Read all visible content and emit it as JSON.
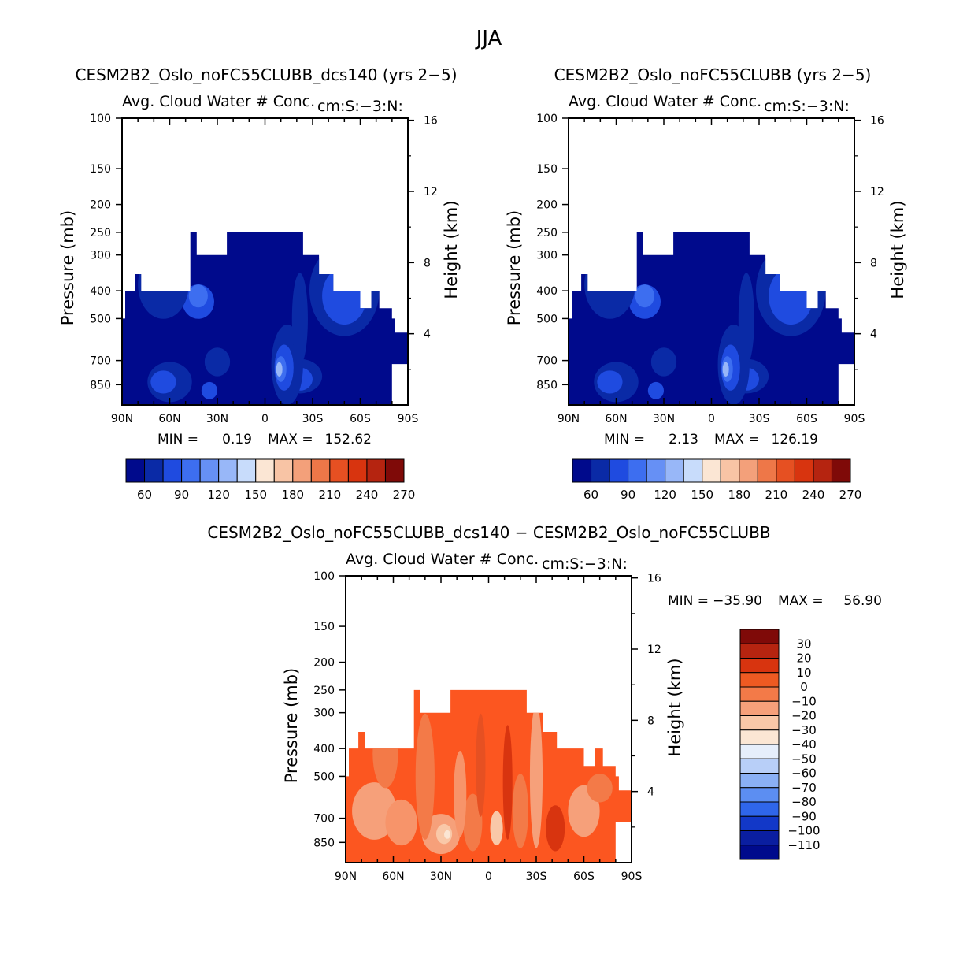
{
  "figure": {
    "title": "JJA"
  },
  "chart_data": [
    {
      "type": "heatmap",
      "title": "CESM2B2_Oslo_noFC55CLUBB_dcs140 (yrs 2−5)",
      "subtitle": "Avg. Cloud Water # Conc.",
      "units": "cm:S:−3:N:",
      "ylabel": "Pressure (mb)",
      "ylabel_right": "Height (km)",
      "x_ticks": [
        "90N",
        "60N",
        "30N",
        "0",
        "30S",
        "60S",
        "90S"
      ],
      "y_ticks": [
        "100",
        "150",
        "200",
        "250",
        "300",
        "400",
        "500",
        "700",
        "850"
      ],
      "y_ticks_right": [
        "16",
        "12",
        "8",
        "4"
      ],
      "min_label": "MIN =",
      "min_value": "0.19",
      "max_label": "MAX =",
      "max_value": "152.62",
      "colorbar_labels": [
        "60",
        "90",
        "120",
        "150",
        "180",
        "210",
        "240",
        "270"
      ],
      "colorbar_colors": [
        "#000a8c",
        "#0a2aa6",
        "#1f4be0",
        "#3d6ef0",
        "#6690f5",
        "#98b7f8",
        "#c8dcfb",
        "#fbe6d4",
        "#f8c4a5",
        "#f3a07a",
        "#ee7748",
        "#e65022",
        "#d8340f",
        "#b52410",
        "#7f0a08"
      ]
    },
    {
      "type": "heatmap",
      "title": "CESM2B2_Oslo_noFC55CLUBB (yrs 2−5)",
      "subtitle": "Avg. Cloud Water # Conc.",
      "units": "cm:S:−3:N:",
      "ylabel": "Pressure (mb)",
      "ylabel_right": "Height (km)",
      "x_ticks": [
        "90N",
        "60N",
        "30N",
        "0",
        "30S",
        "60S",
        "90S"
      ],
      "y_ticks": [
        "100",
        "150",
        "200",
        "250",
        "300",
        "400",
        "500",
        "700",
        "850"
      ],
      "y_ticks_right": [
        "16",
        "12",
        "8",
        "4"
      ],
      "min_label": "MIN =",
      "min_value": "2.13",
      "max_label": "MAX =",
      "max_value": "126.19",
      "colorbar_labels": [
        "60",
        "90",
        "120",
        "150",
        "180",
        "210",
        "240",
        "270"
      ],
      "colorbar_colors": [
        "#000a8c",
        "#0a2aa6",
        "#1f4be0",
        "#3d6ef0",
        "#6690f5",
        "#98b7f8",
        "#c8dcfb",
        "#fbe6d4",
        "#f8c4a5",
        "#f3a07a",
        "#ee7748",
        "#e65022",
        "#d8340f",
        "#b52410",
        "#7f0a08"
      ]
    },
    {
      "type": "heatmap",
      "title": "CESM2B2_Oslo_noFC55CLUBB_dcs140 − CESM2B2_Oslo_noFC55CLUBB",
      "subtitle": "Avg. Cloud Water # Conc.",
      "units": "cm:S:−3:N:",
      "ylabel": "Pressure (mb)",
      "ylabel_right": "Height (km)",
      "x_ticks": [
        "90N",
        "60N",
        "30N",
        "0",
        "30S",
        "60S",
        "90S"
      ],
      "y_ticks": [
        "100",
        "150",
        "200",
        "250",
        "300",
        "400",
        "500",
        "700",
        "850"
      ],
      "y_ticks_right": [
        "16",
        "12",
        "8",
        "4"
      ],
      "min_label": "MIN =",
      "min_value": "−35.90",
      "max_label": "MAX =",
      "max_value": "56.90",
      "colorbar_labels": [
        "30",
        "20",
        "10",
        "0",
        "−10",
        "−20",
        "−30",
        "−40",
        "−50",
        "−60",
        "−70",
        "−80",
        "−90",
        "−100",
        "−110"
      ],
      "colorbar_colors": [
        "#7f0a08",
        "#b52410",
        "#d8340f",
        "#ee5a22",
        "#f37a48",
        "#f6a07a",
        "#f9c8a8",
        "#fbe6d4",
        "#e6eefb",
        "#b8cff8",
        "#8ab0f5",
        "#5c8ef2",
        "#2f66ea",
        "#1238c8",
        "#0a1ea0",
        "#000a8c"
      ]
    }
  ]
}
